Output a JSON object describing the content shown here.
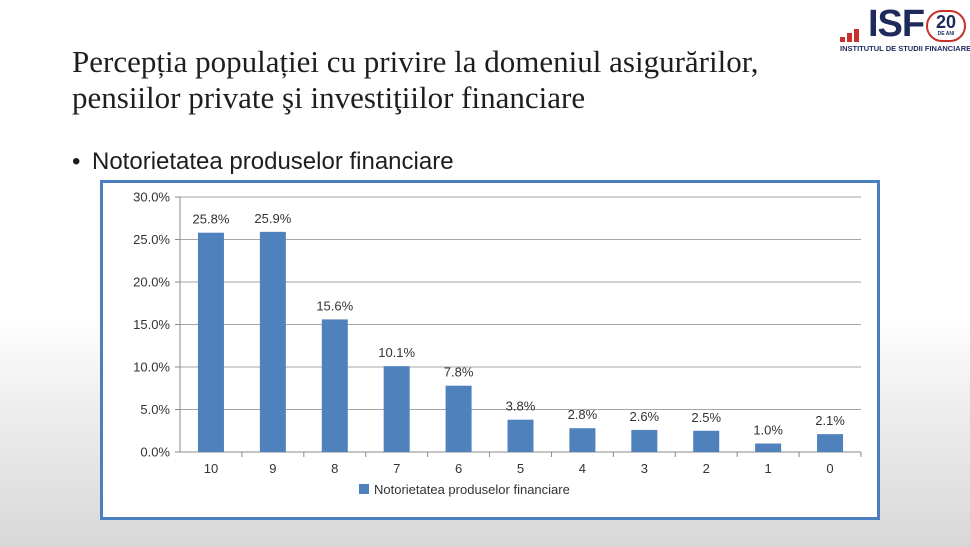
{
  "slide": {
    "title_line1": "Percepția populației cu privire la domeniul asigurărilor,",
    "title_line2": "pensiilor private şi investiţiilor financiare",
    "bullet_marker": "•",
    "bullet_text": "Notorietatea produselor financiare"
  },
  "logo": {
    "text": "ISF",
    "number": "20",
    "number_sub": "DE ANI",
    "caption": "INSTITUTUL DE STUDII FINANCIARE",
    "colors": {
      "accent": "#c8312b",
      "navy": "#1f2a5c"
    }
  },
  "chart_data": {
    "type": "bar",
    "categories": [
      "10",
      "9",
      "8",
      "7",
      "6",
      "5",
      "4",
      "3",
      "2",
      "1",
      "0"
    ],
    "series": [
      {
        "name": "Notorietatea produselor financiare",
        "values": [
          25.8,
          25.9,
          15.6,
          10.1,
          7.8,
          3.8,
          2.8,
          2.6,
          2.5,
          1.0,
          2.1
        ],
        "labels": [
          "25.8%",
          "25.9%",
          "15.6%",
          "10.1%",
          "7.8%",
          "3.8%",
          "2.8%",
          "2.6%",
          "2.5%",
          "1.0%",
          "2.1%"
        ],
        "color": "#4f81bd"
      }
    ],
    "ylim": [
      0,
      30
    ],
    "yticks": [
      0,
      5,
      10,
      15,
      20,
      25,
      30
    ],
    "ytick_labels": [
      "0.0%",
      "5.0%",
      "10.0%",
      "15.0%",
      "20.0%",
      "25.0%",
      "30.0%"
    ],
    "grid": true,
    "legend_position": "bottom",
    "frame_color": "#4a7fc0"
  }
}
